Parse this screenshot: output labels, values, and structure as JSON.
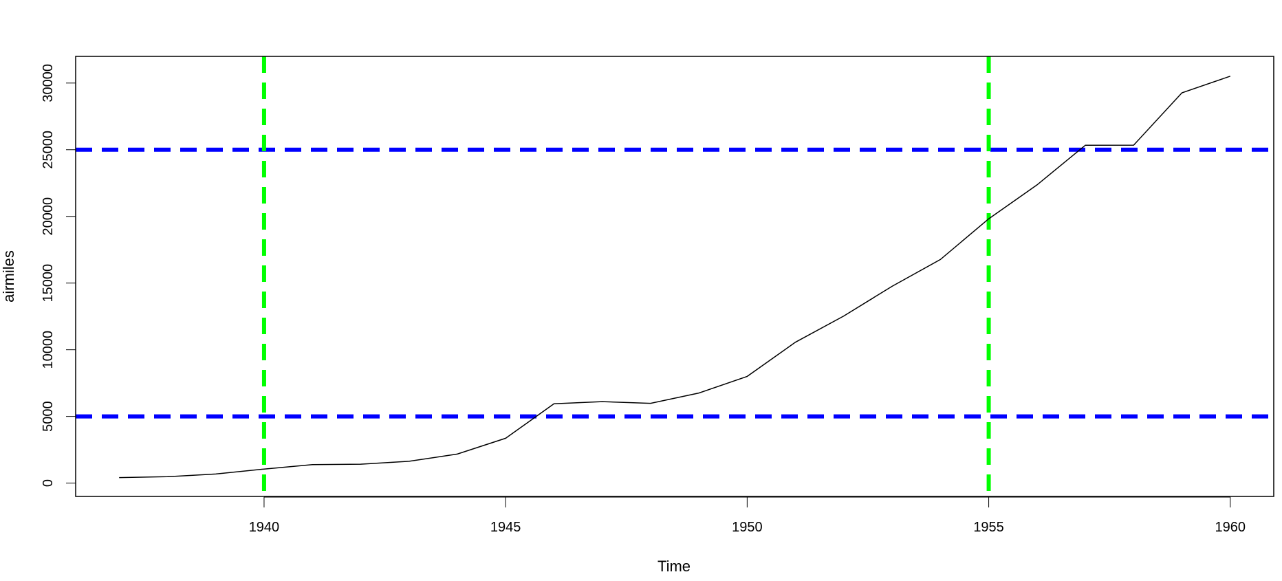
{
  "chart_data": {
    "type": "line",
    "title": "",
    "xlabel": "Time",
    "ylabel": "airmiles",
    "xlim": [
      1936.1,
      1960.9
    ],
    "ylim": [
      -1000,
      32000
    ],
    "x_ticks": [
      1940,
      1945,
      1950,
      1955,
      1960
    ],
    "y_ticks": [
      0,
      5000,
      10000,
      15000,
      20000,
      25000,
      30000
    ],
    "x_tick_labels": [
      "1940",
      "1945",
      "1950",
      "1955",
      "1960"
    ],
    "y_tick_labels": [
      "0",
      "5000",
      "10000",
      "15000",
      "20000",
      "25000",
      "30000"
    ],
    "grid": false,
    "series": [
      {
        "color": "#000000",
        "x": [
          1937,
          1938,
          1939,
          1940,
          1941,
          1942,
          1943,
          1944,
          1945,
          1946,
          1947,
          1948,
          1949,
          1950,
          1951,
          1952,
          1953,
          1954,
          1955,
          1956,
          1957,
          1958,
          1959,
          1960
        ],
        "values": [
          412,
          480,
          683,
          1052,
          1385,
          1418,
          1634,
          2178,
          3362,
          5948,
          6109,
          5981,
          6753,
          8003,
          10566,
          12528,
          14760,
          16769,
          19819,
          22362,
          25340,
          25343,
          29269,
          30514
        ]
      }
    ],
    "reference_lines": {
      "horizontal": {
        "values": [
          5000,
          25000
        ],
        "color": "#0000FF",
        "style": "dashed"
      },
      "vertical": {
        "values": [
          1940,
          1955
        ],
        "color": "#00FF00",
        "style": "dashed"
      }
    }
  }
}
